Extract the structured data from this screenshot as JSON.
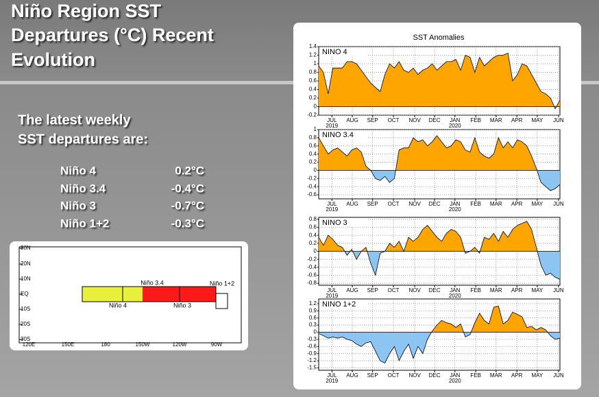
{
  "title_lines": [
    "Niño Region SST",
    "Departures (°C) Recent",
    "Evolution"
  ],
  "intro_lines": [
    "The latest weekly",
    "SST departures are:"
  ],
  "latest": [
    {
      "region": "Niño 4",
      "value": "0.2°C"
    },
    {
      "region": "Niño 3.4",
      "value": "-0.4°C"
    },
    {
      "region": "Niño 3",
      "value": "-0.7°C"
    },
    {
      "region": "Niño 1+2",
      "value": "-0.3°C"
    }
  ],
  "map": {
    "regions": [
      "Niño 3.4",
      "Niño 4",
      "Niño 3",
      "Niño 1+2"
    ],
    "lat_labels": [
      "30N",
      "20N",
      "10N",
      "EQ",
      "10S",
      "20S",
      "30S"
    ],
    "lon_labels": [
      "120E",
      "150E",
      "180",
      "150W",
      "120W",
      "90W"
    ]
  },
  "panel_title": "SST Anomalies",
  "chart_data": [
    {
      "type": "area",
      "label": "NINO 4",
      "grid": true,
      "pos_color": "#ffa500",
      "neg_color": "#8cc4f2",
      "xlim": [
        0,
        51
      ],
      "xticks": [
        {
          "value": 2.8,
          "label": "JUL"
        },
        {
          "value": 7.1,
          "label": "AUG"
        },
        {
          "value": 11.4,
          "label": "SEP"
        },
        {
          "value": 15.8,
          "label": "OCT"
        },
        {
          "value": 20.3,
          "label": "NOV"
        },
        {
          "value": 24.5,
          "label": "DEC"
        },
        {
          "value": 28.8,
          "label": "JAN"
        },
        {
          "value": 33.2,
          "label": "FEB"
        },
        {
          "value": 37.5,
          "label": "MAR"
        },
        {
          "value": 41.9,
          "label": "APR"
        },
        {
          "value": 46.2,
          "label": "MAY"
        },
        {
          "value": 50.7,
          "label": "JUN"
        }
      ],
      "year_labels": [
        {
          "value": 2.8,
          "label": "2019"
        },
        {
          "value": 28.8,
          "label": "2020"
        }
      ],
      "ylim": [
        -0.2,
        1.4
      ],
      "yticks": [
        -0.2,
        0,
        0.2,
        0.4,
        0.6,
        0.8,
        1,
        1.2,
        1.4
      ],
      "x": [
        0,
        1,
        2,
        3,
        4,
        5,
        6,
        7,
        8,
        9,
        10,
        11,
        12,
        13,
        14,
        15,
        16,
        17,
        18,
        19,
        20,
        21,
        22,
        23,
        24,
        25,
        26,
        27,
        28,
        29,
        30,
        31,
        32,
        33,
        34,
        35,
        36,
        37,
        38,
        39,
        40,
        41,
        42,
        43,
        44,
        45,
        46,
        47,
        48,
        49,
        50,
        51
      ],
      "values": [
        0.95,
        0.8,
        0.3,
        0.9,
        0.9,
        0.9,
        1.05,
        1.05,
        1.0,
        0.85,
        0.7,
        0.55,
        0.45,
        0.35,
        0.75,
        1.0,
        0.9,
        1.05,
        0.85,
        0.8,
        0.9,
        0.75,
        0.85,
        0.9,
        1.0,
        0.85,
        0.95,
        1.05,
        1.05,
        1.1,
        0.85,
        1.2,
        1.15,
        0.8,
        1.15,
        0.95,
        1.05,
        1.15,
        1.2,
        1.2,
        1.25,
        0.6,
        0.75,
        1.0,
        0.95,
        0.75,
        0.55,
        0.35,
        0.3,
        0.2,
        -0.05,
        0.15
      ]
    },
    {
      "type": "area",
      "label": "NINO 3.4",
      "grid": true,
      "pos_color": "#ffa500",
      "neg_color": "#8cc4f2",
      "xlim": [
        0,
        51
      ],
      "xticks": [
        {
          "value": 2.8,
          "label": "JUL"
        },
        {
          "value": 7.1,
          "label": "AUG"
        },
        {
          "value": 11.4,
          "label": "SEP"
        },
        {
          "value": 15.8,
          "label": "OCT"
        },
        {
          "value": 20.3,
          "label": "NOV"
        },
        {
          "value": 24.5,
          "label": "DEC"
        },
        {
          "value": 28.8,
          "label": "JAN"
        },
        {
          "value": 33.2,
          "label": "FEB"
        },
        {
          "value": 37.5,
          "label": "MAR"
        },
        {
          "value": 41.9,
          "label": "APR"
        },
        {
          "value": 46.2,
          "label": "MAY"
        },
        {
          "value": 50.7,
          "label": "JUN"
        }
      ],
      "year_labels": [
        {
          "value": 2.8,
          "label": "2019"
        },
        {
          "value": 28.8,
          "label": "2020"
        }
      ],
      "ylim": [
        -0.7,
        1.0
      ],
      "yticks": [
        -0.6,
        -0.4,
        -0.2,
        0,
        0.2,
        0.4,
        0.6,
        0.8,
        1
      ],
      "x": [
        0,
        1,
        2,
        3,
        4,
        5,
        6,
        7,
        8,
        9,
        10,
        11,
        12,
        13,
        14,
        15,
        16,
        17,
        18,
        19,
        20,
        21,
        22,
        23,
        24,
        25,
        26,
        27,
        28,
        29,
        30,
        31,
        32,
        33,
        34,
        35,
        36,
        37,
        38,
        39,
        40,
        41,
        42,
        43,
        44,
        45,
        46,
        47,
        48,
        49,
        50,
        51
      ],
      "values": [
        0.8,
        0.6,
        0.4,
        0.5,
        0.55,
        0.45,
        0.35,
        0.5,
        0.55,
        0.45,
        0.1,
        0,
        -0.2,
        -0.25,
        -0.15,
        -0.3,
        -0.2,
        0.5,
        0.55,
        0.55,
        0.8,
        0.7,
        0.75,
        0.6,
        0.7,
        0.85,
        0.7,
        0.55,
        0.6,
        0.75,
        0.7,
        0.5,
        0.45,
        0.8,
        0.45,
        0.35,
        0.3,
        0.4,
        0.8,
        0.55,
        0.7,
        0.55,
        0.75,
        0.7,
        0.6,
        0.35,
        0.05,
        -0.3,
        -0.4,
        -0.5,
        -0.45,
        -0.35
      ]
    },
    {
      "type": "area",
      "label": "NINO 3",
      "grid": true,
      "pos_color": "#ffa500",
      "neg_color": "#8cc4f2",
      "xlim": [
        0,
        51
      ],
      "xticks": [
        {
          "value": 2.8,
          "label": "JUL"
        },
        {
          "value": 7.1,
          "label": "AUG"
        },
        {
          "value": 11.4,
          "label": "SEP"
        },
        {
          "value": 15.8,
          "label": "OCT"
        },
        {
          "value": 20.3,
          "label": "NOV"
        },
        {
          "value": 24.5,
          "label": "DEC"
        },
        {
          "value": 28.8,
          "label": "JAN"
        },
        {
          "value": 33.2,
          "label": "FEB"
        },
        {
          "value": 37.5,
          "label": "MAR"
        },
        {
          "value": 41.9,
          "label": "APR"
        },
        {
          "value": 46.2,
          "label": "MAY"
        },
        {
          "value": 50.7,
          "label": "JUN"
        }
      ],
      "year_labels": [
        {
          "value": 2.8,
          "label": "2019"
        },
        {
          "value": 28.8,
          "label": "2020"
        }
      ],
      "ylim": [
        -0.85,
        0.85
      ],
      "yticks": [
        -0.8,
        -0.6,
        -0.4,
        -0.2,
        0,
        0.2,
        0.4,
        0.6,
        0.8
      ],
      "x": [
        0,
        1,
        2,
        3,
        4,
        5,
        6,
        7,
        8,
        9,
        10,
        11,
        12,
        13,
        14,
        15,
        16,
        17,
        18,
        19,
        20,
        21,
        22,
        23,
        24,
        25,
        26,
        27,
        28,
        29,
        30,
        31,
        32,
        33,
        34,
        35,
        36,
        37,
        38,
        39,
        40,
        41,
        42,
        43,
        44,
        45,
        46,
        47,
        48,
        49,
        50,
        51
      ],
      "values": [
        0.35,
        0.15,
        0.4,
        0.3,
        0.15,
        0.1,
        -0.1,
        0.05,
        -0.2,
        0,
        0.1,
        -0.3,
        -0.6,
        -0.05,
        0,
        0.2,
        0.1,
        0.25,
        0,
        0.35,
        0.25,
        0.35,
        0.55,
        0.65,
        0.5,
        0.35,
        0.25,
        0.45,
        0.55,
        0.5,
        0.35,
        -0.05,
        0,
        0.1,
        -0.05,
        0.35,
        0.3,
        0.45,
        0.25,
        0.5,
        0.35,
        0.55,
        0.65,
        0.7,
        0.75,
        0.55,
        0.1,
        -0.35,
        -0.6,
        -0.55,
        -0.65,
        -0.7
      ]
    },
    {
      "type": "area",
      "label": "NINO 1+2",
      "grid": true,
      "pos_color": "#ffa500",
      "neg_color": "#8cc4f2",
      "xlim": [
        0,
        51
      ],
      "xticks": [
        {
          "value": 2.8,
          "label": "JUL"
        },
        {
          "value": 7.1,
          "label": "AUG"
        },
        {
          "value": 11.4,
          "label": "SEP"
        },
        {
          "value": 15.8,
          "label": "OCT"
        },
        {
          "value": 20.3,
          "label": "NOV"
        },
        {
          "value": 24.5,
          "label": "DEC"
        },
        {
          "value": 28.8,
          "label": "JAN"
        },
        {
          "value": 33.2,
          "label": "FEB"
        },
        {
          "value": 37.5,
          "label": "MAR"
        },
        {
          "value": 41.9,
          "label": "APR"
        },
        {
          "value": 46.2,
          "label": "MAY"
        },
        {
          "value": 50.7,
          "label": "JUN"
        }
      ],
      "year_labels": [
        {
          "value": 2.8,
          "label": "2019"
        },
        {
          "value": 28.8,
          "label": "2020"
        }
      ],
      "ylim": [
        -1.6,
        1.4
      ],
      "yticks": [
        -1.5,
        -1.2,
        -0.9,
        -0.6,
        -0.3,
        0,
        0.3,
        0.6,
        0.9,
        1.2
      ],
      "x": [
        0,
        1,
        2,
        3,
        4,
        5,
        6,
        7,
        8,
        9,
        10,
        11,
        12,
        13,
        14,
        15,
        16,
        17,
        18,
        19,
        20,
        21,
        22,
        23,
        24,
        25,
        26,
        27,
        28,
        29,
        30,
        31,
        32,
        33,
        34,
        35,
        36,
        37,
        38,
        39,
        40,
        41,
        42,
        43,
        44,
        45,
        46,
        47,
        48,
        49,
        50,
        51
      ],
      "values": [
        -0.05,
        -0.15,
        -0.25,
        -0.2,
        -0.25,
        -0.2,
        -0.3,
        -0.35,
        -0.5,
        -0.6,
        -0.45,
        -0.4,
        -0.8,
        -1.2,
        -1.3,
        -0.9,
        -0.6,
        -1.2,
        -0.8,
        -0.5,
        -1.1,
        -0.6,
        -0.9,
        -0.3,
        0.05,
        0.3,
        0.5,
        0.4,
        0.35,
        0.2,
        0.35,
        -0.2,
        -0.1,
        0.4,
        0.8,
        0.5,
        0.35,
        1.05,
        1.1,
        0.35,
        0.5,
        0.85,
        0.75,
        0.65,
        0.2,
        0.25,
        0.1,
        0.2,
        0.1,
        -0.15,
        -0.3,
        -0.25
      ]
    }
  ]
}
